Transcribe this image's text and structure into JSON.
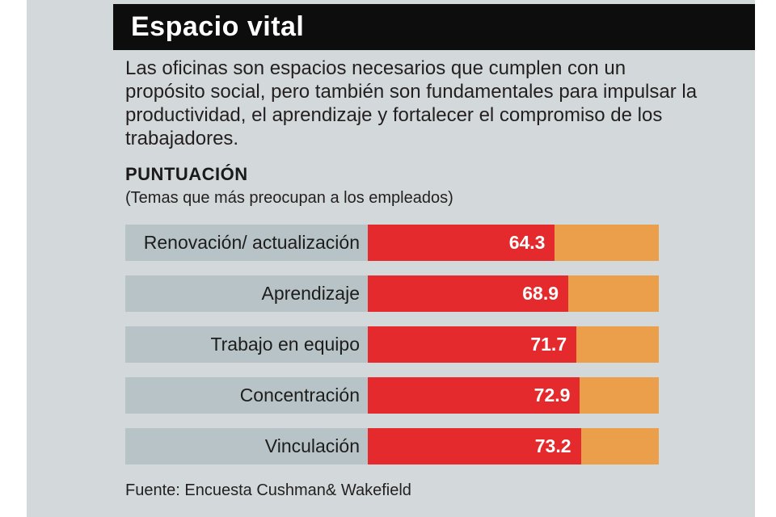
{
  "header": {
    "title": "Espacio vital"
  },
  "intro": {
    "text": "Las oficinas son espacios necesarios que cumplen con un propósito social, pero también son fundamentales para impulsar la productividad, el aprendizaje y fortalecer el compromiso de los trabajadores."
  },
  "section": {
    "heading": "PUNTUACIÓN",
    "subheading": "(Temas que más preocupan a los empleados)"
  },
  "source": {
    "text": "Fuente: Encuesta Cushman& Wakefield"
  },
  "colors": {
    "panel_bg": "#d3d9da",
    "header_bg": "#0d0d0d",
    "label_bg": "#b7c3c7",
    "bar_red": "#e42a2c",
    "bar_orange": "#ec9f4a"
  },
  "chart_data": {
    "type": "bar",
    "orientation": "horizontal",
    "title": "PUNTUACIÓN",
    "subtitle": "(Temas que más preocupan a los empleados)",
    "categories": [
      "Renovación/ actualización",
      "Aprendizaje",
      "Trabajo en equipo",
      "Concentración",
      "Vinculación"
    ],
    "values": [
      64.3,
      68.9,
      71.7,
      72.9,
      73.2
    ],
    "xlim": [
      0,
      100
    ],
    "grid": false,
    "legend_position": "none"
  }
}
